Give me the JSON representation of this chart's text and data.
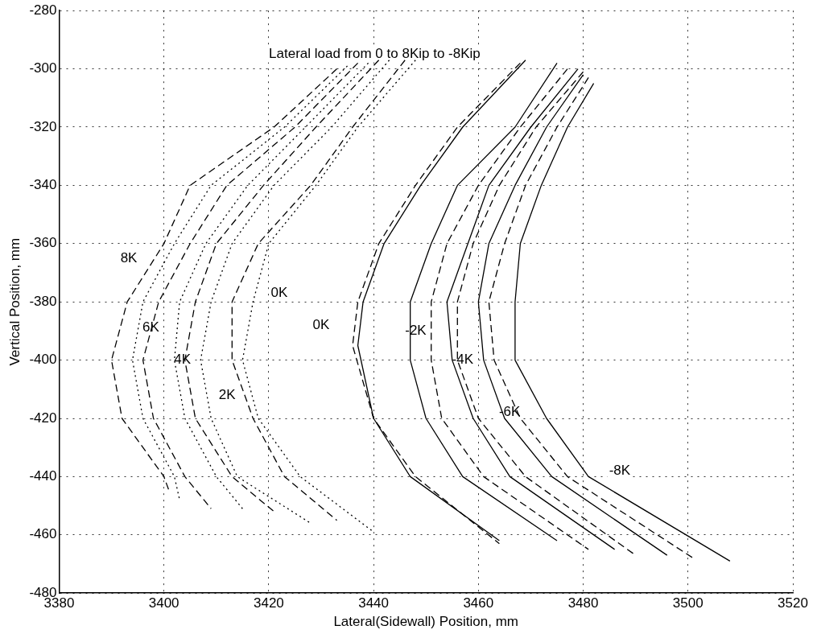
{
  "chart_data": {
    "type": "line",
    "title": "Lateral load from 0 to 8Kip to -8Kip",
    "xlabel": "Lateral(Sidewall) Position, mm",
    "ylabel": "Vertical Position, mm",
    "xlim": [
      3380,
      3520
    ],
    "xticks": [
      3380,
      3400,
      3420,
      3440,
      3460,
      3480,
      3500,
      3520
    ],
    "ylim": [
      -480,
      -280
    ],
    "yticks": [
      -480,
      -460,
      -440,
      -420,
      -400,
      -380,
      -360,
      -340,
      -320,
      -300,
      -280
    ],
    "grid": true,
    "legend": false,
    "marker": "none",
    "series": [
      {
        "color": "#000000",
        "line_style": "dashed",
        "x": [
          3433,
          3421,
          3405,
          3400,
          3393,
          3390,
          3392,
          3400,
          3401
        ],
        "values": [
          -300,
          -320,
          -340,
          -360,
          -380,
          -400,
          -420,
          -440,
          -445
        ]
      },
      {
        "color": "#000000",
        "line_style": "dotted",
        "x": [
          3435,
          3423,
          3409,
          3402,
          3396,
          3394,
          3396,
          3402,
          3403
        ],
        "values": [
          -299,
          -320,
          -340,
          -360,
          -380,
          -400,
          -420,
          -440,
          -448
        ]
      },
      {
        "color": "#000000",
        "line_style": "dashed",
        "x": [
          3437,
          3425,
          3412,
          3405,
          3399,
          3396,
          3398,
          3404,
          3409
        ],
        "values": [
          -298,
          -320,
          -340,
          -360,
          -380,
          -400,
          -420,
          -440,
          -451
        ]
      },
      {
        "color": "#000000",
        "line_style": "dotted",
        "x": [
          3439,
          3427,
          3416,
          3408,
          3403,
          3402,
          3404,
          3410,
          3415
        ],
        "values": [
          -298,
          -320,
          -340,
          -360,
          -380,
          -400,
          -420,
          -440,
          -451
        ]
      },
      {
        "color": "#000000",
        "line_style": "dashed",
        "x": [
          3441,
          3429,
          3419,
          3410,
          3406,
          3404,
          3406,
          3413,
          3421
        ],
        "values": [
          -297,
          -320,
          -340,
          -360,
          -380,
          -400,
          -420,
          -440,
          -452
        ]
      },
      {
        "color": "#000000",
        "line_style": "dotted",
        "x": [
          3443,
          3432,
          3421,
          3413,
          3409,
          3407,
          3409,
          3414,
          3428
        ],
        "values": [
          -297,
          -320,
          -340,
          -360,
          -380,
          -400,
          -420,
          -440,
          -456
        ]
      },
      {
        "color": "#000000",
        "line_style": "dashed",
        "x": [
          3446,
          3436,
          3428,
          3418,
          3413,
          3413,
          3417,
          3423,
          3433
        ],
        "values": [
          -297,
          -320,
          -340,
          -360,
          -380,
          -400,
          -420,
          -440,
          -455
        ]
      },
      {
        "color": "#000000",
        "line_style": "dotted",
        "x": [
          3448,
          3437,
          3429,
          3420,
          3417,
          3415,
          3418,
          3426,
          3440
        ],
        "values": [
          -297,
          -320,
          -340,
          -360,
          -380,
          -400,
          -420,
          -440,
          -459
        ]
      },
      {
        "color": "#000000",
        "line_style": "solid",
        "x": [
          3469,
          3457,
          3449,
          3442,
          3438,
          3437,
          3440,
          3447,
          3464
        ],
        "values": [
          -297,
          -320,
          -340,
          -360,
          -380,
          -395,
          -420,
          -440,
          -462
        ]
      },
      {
        "color": "#000000",
        "line_style": "dashed",
        "x": [
          3468,
          3456,
          3448,
          3441,
          3437,
          3436,
          3440,
          3448,
          3464
        ],
        "values": [
          -298,
          -320,
          -340,
          -360,
          -380,
          -395,
          -420,
          -440,
          -463
        ]
      },
      {
        "color": "#000000",
        "line_style": "solid",
        "x": [
          3475,
          3467,
          3456,
          3451,
          3447,
          3447,
          3450,
          3457,
          3475
        ],
        "values": [
          -298,
          -320,
          -340,
          -360,
          -380,
          -400,
          -420,
          -440,
          -462
        ]
      },
      {
        "color": "#000000",
        "line_style": "dashed",
        "x": [
          3477,
          3468,
          3460,
          3454,
          3451,
          3451,
          3453,
          3461,
          3481
        ],
        "values": [
          -300,
          -320,
          -340,
          -360,
          -380,
          -400,
          -420,
          -440,
          -465
        ]
      },
      {
        "color": "#000000",
        "line_style": "solid",
        "x": [
          3479,
          3470,
          3462,
          3458,
          3454,
          3455,
          3459,
          3466,
          3486
        ],
        "values": [
          -300,
          -320,
          -340,
          -360,
          -380,
          -400,
          -420,
          -440,
          -465
        ]
      },
      {
        "color": "#000000",
        "line_style": "dashed",
        "x": [
          3480,
          3471,
          3464,
          3459,
          3456,
          3456,
          3460,
          3469,
          3490
        ],
        "values": [
          -301,
          -320,
          -340,
          -360,
          -380,
          -400,
          -420,
          -440,
          -467
        ]
      },
      {
        "color": "#000000",
        "line_style": "solid",
        "x": [
          3480,
          3473,
          3467,
          3462,
          3460,
          3461,
          3465,
          3474,
          3496
        ],
        "values": [
          -302,
          -320,
          -340,
          -360,
          -380,
          -400,
          -420,
          -440,
          -467
        ]
      },
      {
        "color": "#000000",
        "line_style": "dashed",
        "x": [
          3481,
          3475,
          3469,
          3465,
          3462,
          3463,
          3468,
          3477,
          3501
        ],
        "values": [
          -303,
          -320,
          -340,
          -360,
          -380,
          -400,
          -420,
          -440,
          -468
        ]
      },
      {
        "color": "#000000",
        "line_style": "solid",
        "x": [
          3482,
          3477,
          3472,
          3468,
          3467,
          3467,
          3473,
          3481,
          3508
        ],
        "values": [
          -305,
          -320,
          -340,
          -360,
          -380,
          -400,
          -420,
          -440,
          -469
        ]
      }
    ],
    "annotations": [
      "8K",
      "6K",
      "4K",
      "2K",
      "0K",
      "0K",
      "-2K",
      "-4K",
      "-6K",
      "-8K"
    ]
  }
}
